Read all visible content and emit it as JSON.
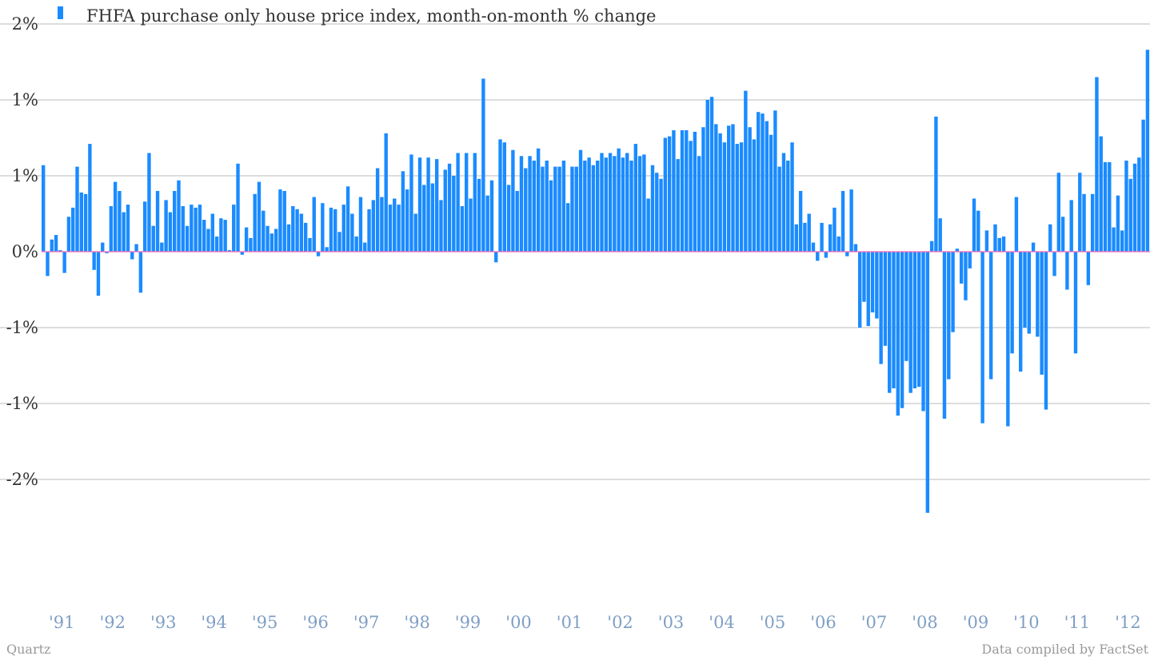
{
  "chart_data": {
    "type": "bar",
    "legend": "FHFA purchase only house price index, month-on-month % change",
    "legend_position": "top-left",
    "color": "#1a8bff",
    "baseline_color": "#ff66b2",
    "grid": true,
    "ylim": [
      -1.9,
      1.5
    ],
    "y_ticks": [
      {
        "value": 1.5,
        "label": "2%"
      },
      {
        "value": 1.0,
        "label": "1%"
      },
      {
        "value": 0.5,
        "label": "1%"
      },
      {
        "value": 0.0,
        "label": "0%"
      },
      {
        "value": -0.5,
        "label": "-1%"
      },
      {
        "value": -1.0,
        "label": "-1%"
      },
      {
        "value": -1.5,
        "label": "-2%"
      }
    ],
    "x_tick_labels": [
      "'91",
      "'92",
      "'93",
      "'94",
      "'95",
      "'96",
      "'97",
      "'98",
      "'99",
      "'00",
      "'01",
      "'02",
      "'03",
      "'04",
      "'05",
      "'06",
      "'07",
      "'08",
      "'09",
      "'10",
      "'11",
      "'12"
    ],
    "start": "1991-01",
    "end": "2012-10",
    "values": [
      0.57,
      -0.16,
      0.08,
      0.11,
      0.01,
      -0.14,
      0.23,
      0.29,
      0.56,
      0.39,
      0.38,
      0.71,
      -0.12,
      -0.29,
      0.06,
      -0.01,
      0.3,
      0.46,
      0.4,
      0.26,
      0.31,
      -0.05,
      0.05,
      -0.27,
      0.33,
      0.65,
      0.17,
      0.4,
      0.06,
      0.34,
      0.26,
      0.4,
      0.47,
      0.3,
      0.17,
      0.31,
      0.29,
      0.31,
      0.21,
      0.15,
      0.25,
      0.1,
      0.22,
      0.21,
      0.01,
      0.31,
      0.58,
      -0.02,
      0.16,
      0.09,
      0.38,
      0.46,
      0.27,
      0.17,
      0.12,
      0.15,
      0.41,
      0.4,
      0.18,
      0.3,
      0.28,
      0.25,
      0.19,
      0.09,
      0.36,
      -0.03,
      0.32,
      0.03,
      0.29,
      0.28,
      0.13,
      0.31,
      0.43,
      0.25,
      0.1,
      0.36,
      0.06,
      0.28,
      0.34,
      0.55,
      0.36,
      0.78,
      0.31,
      0.35,
      0.31,
      0.53,
      0.41,
      0.64,
      0.25,
      0.62,
      0.44,
      0.62,
      0.45,
      0.61,
      0.34,
      0.54,
      0.58,
      0.5,
      0.65,
      0.3,
      0.65,
      0.35,
      0.65,
      0.48,
      1.14,
      0.37,
      0.47,
      -0.07,
      0.74,
      0.72,
      0.44,
      0.67,
      0.4,
      0.63,
      0.55,
      0.63,
      0.6,
      0.68,
      0.56,
      0.6,
      0.47,
      0.56,
      0.56,
      0.6,
      0.32,
      0.56,
      0.56,
      0.67,
      0.6,
      0.62,
      0.57,
      0.6,
      0.65,
      0.62,
      0.65,
      0.63,
      0.68,
      0.62,
      0.65,
      0.6,
      0.71,
      0.63,
      0.64,
      0.35,
      0.57,
      0.52,
      0.48,
      0.75,
      0.76,
      0.8,
      0.61,
      0.8,
      0.8,
      0.73,
      0.79,
      0.63,
      0.82,
      1.0,
      1.02,
      0.84,
      0.78,
      0.72,
      0.83,
      0.84,
      0.71,
      0.72,
      1.06,
      0.82,
      0.74,
      0.92,
      0.91,
      0.86,
      0.77,
      0.93,
      0.56,
      0.65,
      0.6,
      0.72,
      0.18,
      0.4,
      0.19,
      0.25,
      0.06,
      -0.06,
      0.19,
      -0.04,
      0.18,
      0.29,
      0.1,
      0.4,
      -0.03,
      0.41,
      0.05,
      -0.5,
      -0.33,
      -0.49,
      -0.4,
      -0.44,
      -0.74,
      -0.62,
      -0.93,
      -0.9,
      -1.08,
      -1.03,
      -0.72,
      -0.93,
      -0.9,
      -0.89,
      -1.05,
      -1.72,
      0.07,
      0.89,
      0.22,
      -1.1,
      -0.84,
      -0.53,
      0.02,
      -0.21,
      -0.32,
      -0.11,
      0.35,
      0.27,
      -1.13,
      0.14,
      -0.84,
      0.18,
      0.09,
      0.1,
      -1.15,
      -0.67,
      0.36,
      -0.79,
      -0.5,
      -0.54,
      0.06,
      -0.56,
      -0.81,
      -1.04,
      0.18,
      -0.16,
      0.52,
      0.23,
      -0.25,
      0.34,
      -0.67,
      0.52,
      0.38,
      -0.22,
      0.38,
      1.15,
      0.76,
      0.59,
      0.59,
      0.16,
      0.37,
      0.14,
      0.6,
      0.48,
      0.58,
      0.62,
      0.87,
      1.33
    ]
  },
  "footer": {
    "brand": "Quartz",
    "source": "Data compiled by FactSet"
  }
}
